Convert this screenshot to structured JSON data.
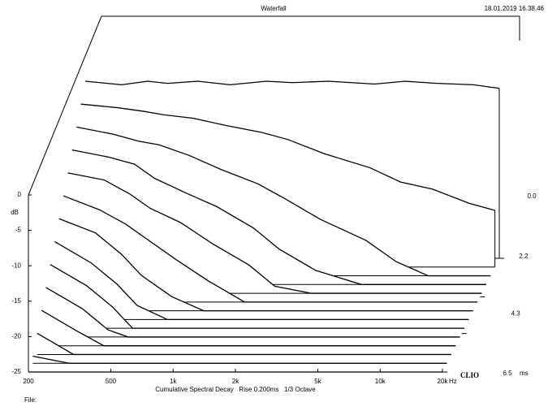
{
  "chart_data": {
    "type": "waterfall",
    "title": "Waterfall",
    "timestamp": "18.01.2019 16.38.46",
    "subtitle": "Cumulative Spectral Decay   Rise 0.200ms   1/3 Octave",
    "xlabel": "Hz",
    "ylabel": "dB",
    "zlabel": "ms",
    "brand": "CLIO",
    "file_label": "File:",
    "log_x": true,
    "color": "#000000",
    "xlim": [
      200,
      20000
    ],
    "ylim": [
      -25,
      0
    ],
    "zlim": [
      0,
      6.5
    ],
    "xticks": [
      200,
      500,
      {
        "value": 1000,
        "label": "1k"
      },
      {
        "value": 2000,
        "label": "2k"
      },
      {
        "value": 5000,
        "label": "5k"
      },
      {
        "value": 10000,
        "label": "10k"
      },
      {
        "value": 20000,
        "label": "20k"
      }
    ],
    "yticks": [
      0,
      -5,
      -10,
      -15,
      -20,
      -25
    ],
    "zticks": [
      {
        "value": 0,
        "label": "0.0"
      },
      2.2,
      4.3,
      6.5
    ],
    "x": [
      200,
      300,
      400,
      500,
      700,
      1000,
      1500,
      2000,
      3000,
      5000,
      7000,
      10000,
      15000,
      20000
    ],
    "series": [
      {
        "z": 0,
        "values": [
          0,
          -0.5,
          0,
          -0.3,
          0,
          -0.5,
          0,
          -0.2,
          0,
          -0.4,
          0,
          -0.3,
          -0.5,
          -1
        ]
      },
      {
        "z": 0.5,
        "values": [
          -2,
          -2.5,
          -3,
          -3.5,
          -4,
          -5,
          -6,
          -7,
          -9,
          -11,
          -13,
          -14,
          -16,
          -17
        ]
      },
      {
        "z": 1,
        "values": [
          -4,
          -5,
          -6,
          -6.5,
          -8,
          -10,
          -12,
          -14,
          -17,
          -20,
          -23,
          -25,
          -25,
          -25
        ]
      },
      {
        "z": 1.5,
        "values": [
          -6,
          -7,
          -8,
          -10,
          -12,
          -14,
          -17,
          -20,
          -23,
          -25,
          -25,
          -25,
          -25,
          -25
        ]
      },
      {
        "z": 2,
        "values": [
          -8,
          -9,
          -11,
          -13,
          -15,
          -18,
          -21,
          -24,
          -25,
          -25,
          -25,
          -25,
          -25,
          -25
        ]
      },
      {
        "z": 2.5,
        "values": [
          -10,
          -12,
          -14,
          -16,
          -19,
          -22,
          -25,
          -25,
          -25,
          -25,
          -25,
          -25,
          -25,
          -25
        ]
      },
      {
        "z": 3,
        "values": [
          -12,
          -14,
          -17,
          -20,
          -23,
          -25,
          -25,
          -25,
          -25,
          -25,
          -25,
          -25,
          -25,
          -25
        ]
      },
      {
        "z": 3.5,
        "values": [
          -14,
          -17,
          -20,
          -23,
          -25,
          -25,
          -25,
          -25,
          -25,
          -25,
          -25,
          -25,
          -25,
          -25
        ]
      },
      {
        "z": 4,
        "values": [
          -16,
          -19,
          -22,
          -25,
          -25,
          -25,
          -25,
          -25,
          -25,
          -25,
          -25,
          -25,
          -25,
          -25
        ]
      },
      {
        "z": 4.5,
        "values": [
          -18,
          -21,
          -24,
          -25,
          -25,
          -25,
          -25,
          -25,
          -25,
          -25,
          -25,
          -25,
          -25,
          -25
        ]
      },
      {
        "z": 5,
        "values": [
          -20,
          -23,
          -25,
          -25,
          -25,
          -25,
          -25,
          -25,
          -25,
          -25,
          -25,
          -25,
          -25,
          -25
        ]
      },
      {
        "z": 5.5,
        "values": [
          -22,
          -25,
          -25,
          -25,
          -25,
          -25,
          -25,
          -25,
          -25,
          -25,
          -25,
          -25,
          -25,
          -25
        ]
      },
      {
        "z": 6,
        "values": [
          -24,
          -25,
          -25,
          -25,
          -25,
          -25,
          -25,
          -25,
          -25,
          -25,
          -25,
          -25,
          -25,
          -25
        ]
      },
      {
        "z": 6.5,
        "values": [
          -25,
          -25,
          -25,
          -25,
          -25,
          -25,
          -25,
          -25,
          -25,
          -25,
          -25,
          -25,
          -25,
          -25
        ]
      }
    ]
  }
}
